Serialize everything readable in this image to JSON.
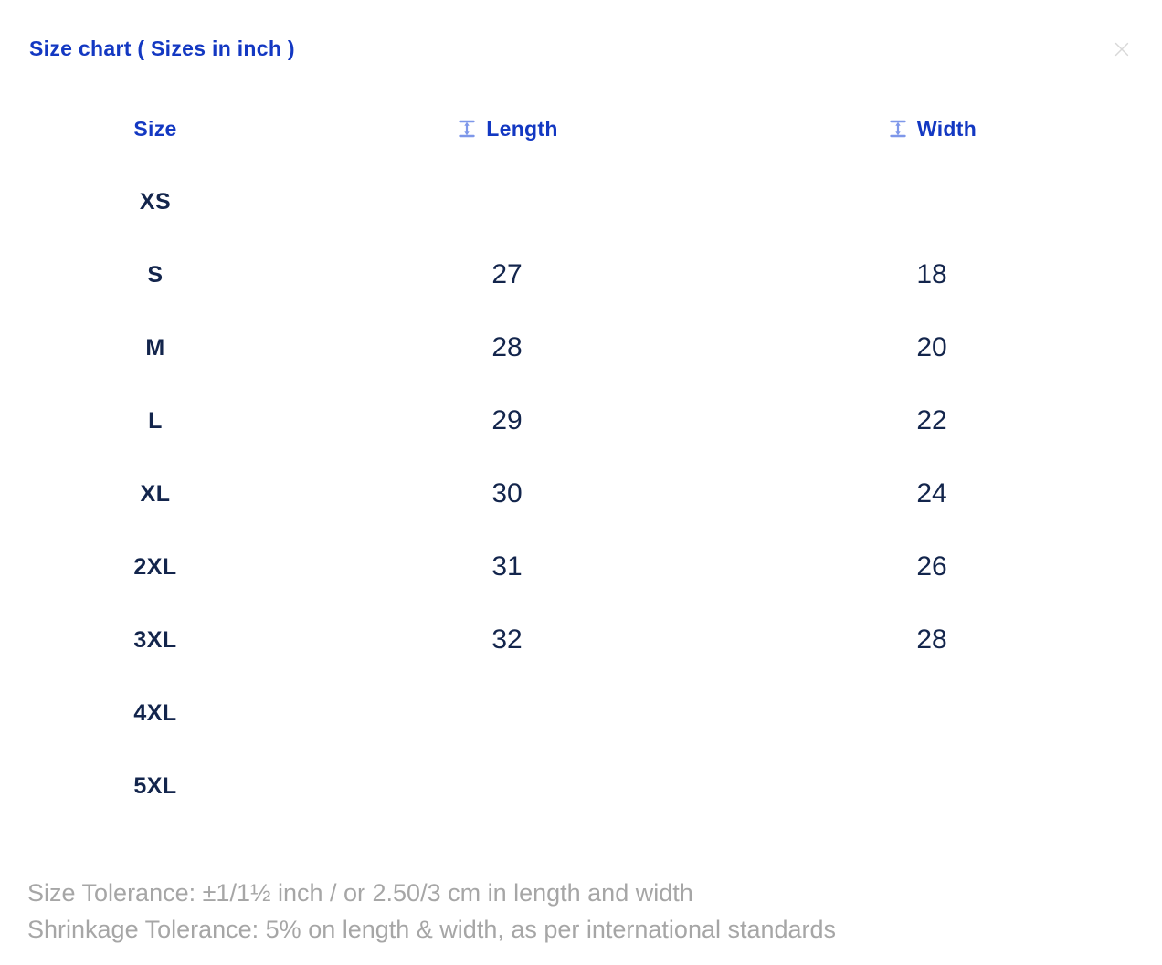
{
  "modal": {
    "title": "Size chart ( Sizes in inch )"
  },
  "table": {
    "columns": [
      {
        "key": "size",
        "label": "Size",
        "icon": null
      },
      {
        "key": "length",
        "label": "Length",
        "icon": "measure-vertical-icon"
      },
      {
        "key": "width",
        "label": "Width",
        "icon": "measure-vertical-icon"
      }
    ],
    "rows": [
      {
        "size": "XS",
        "length": "",
        "width": ""
      },
      {
        "size": "S",
        "length": "27",
        "width": "18"
      },
      {
        "size": "M",
        "length": "28",
        "width": "20"
      },
      {
        "size": "L",
        "length": "29",
        "width": "22"
      },
      {
        "size": "XL",
        "length": "30",
        "width": "24"
      },
      {
        "size": "2XL",
        "length": "31",
        "width": "26"
      },
      {
        "size": "3XL",
        "length": "32",
        "width": "28"
      },
      {
        "size": "4XL",
        "length": "",
        "width": ""
      },
      {
        "size": "5XL",
        "length": "",
        "width": ""
      }
    ]
  },
  "footer": {
    "line1": "Size Tolerance: ±1/1½ inch / or 2.50/3 cm in length and width",
    "line2": "Shrinkage Tolerance: 5% on length & width, as per international standards"
  },
  "colors": {
    "accent_blue": "#1338C2",
    "icon_blue": "#7E97E9",
    "navy_text": "#13254C",
    "muted_gray": "#A6A6A6",
    "close_gray": "#D8D8D8"
  }
}
